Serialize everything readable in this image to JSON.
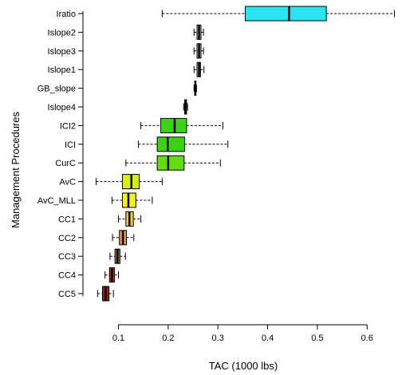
{
  "chart_data": {
    "type": "boxplot",
    "orientation": "horizontal",
    "xlabel": "TAC (1000 lbs)",
    "ylabel": "Management Procedures",
    "xticks": [
      0.1,
      0.2,
      0.3,
      0.4,
      0.5,
      0.6
    ],
    "xlim": [
      0.035,
      0.65
    ],
    "grid": false,
    "series": [
      {
        "label": "Iratio",
        "whisker_low": 0.188,
        "q1": 0.355,
        "median": 0.443,
        "q3": 0.518,
        "whisker_high": 0.655,
        "color": "#28e4ef"
      },
      {
        "label": "Islope2",
        "whisker_low": 0.252,
        "q1": 0.258,
        "median": 0.262,
        "q3": 0.266,
        "whisker_high": 0.271,
        "color": "#c8c8c8"
      },
      {
        "label": "Islope3",
        "whisker_low": 0.252,
        "q1": 0.258,
        "median": 0.262,
        "q3": 0.266,
        "whisker_high": 0.271,
        "color": "#c8c8c8"
      },
      {
        "label": "Islope1",
        "whisker_low": 0.252,
        "q1": 0.258,
        "median": 0.262,
        "q3": 0.265,
        "whisker_high": 0.272,
        "color": "#c8c8c8"
      },
      {
        "label": "GB_slope",
        "whisker_low": 0.252,
        "q1": 0.2535,
        "median": 0.2545,
        "q3": 0.2555,
        "whisker_high": 0.257,
        "color": "#c8c8c8"
      },
      {
        "label": "Islope4",
        "whisker_low": 0.231,
        "q1": 0.233,
        "median": 0.235,
        "q3": 0.237,
        "whisker_high": 0.239,
        "color": "#c8c8c8"
      },
      {
        "label": "ICI2",
        "whisker_low": 0.145,
        "q1": 0.185,
        "median": 0.213,
        "q3": 0.237,
        "whisker_high": 0.31,
        "color": "#3cd216"
      },
      {
        "label": "ICI",
        "whisker_low": 0.14,
        "q1": 0.178,
        "median": 0.199,
        "q3": 0.233,
        "whisker_high": 0.32,
        "color": "#3cd216"
      },
      {
        "label": "CurC",
        "whisker_low": 0.115,
        "q1": 0.178,
        "median": 0.2,
        "q3": 0.232,
        "whisker_high": 0.305,
        "color": "#64dd10"
      },
      {
        "label": "AvC",
        "whisker_low": 0.055,
        "q1": 0.108,
        "median": 0.126,
        "q3": 0.142,
        "whisker_high": 0.188,
        "color": "#d6f010"
      },
      {
        "label": "AvC_MLL",
        "whisker_low": 0.087,
        "q1": 0.108,
        "median": 0.12,
        "q3": 0.135,
        "whisker_high": 0.168,
        "color": "#f0f023"
      },
      {
        "label": "CC1",
        "whisker_low": 0.1,
        "q1": 0.115,
        "median": 0.122,
        "q3": 0.13,
        "whisker_high": 0.145,
        "color": "#f5c73a"
      },
      {
        "label": "CC2",
        "whisker_low": 0.088,
        "q1": 0.102,
        "median": 0.109,
        "q3": 0.116,
        "whisker_high": 0.131,
        "color": "#e89a3c"
      },
      {
        "label": "CC3",
        "whisker_low": 0.083,
        "q1": 0.093,
        "median": 0.098,
        "q3": 0.103,
        "whisker_high": 0.114,
        "color": "#c95e34"
      },
      {
        "label": "CC4",
        "whisker_low": 0.073,
        "q1": 0.082,
        "median": 0.087,
        "q3": 0.092,
        "whisker_high": 0.1,
        "color": "#a0381f"
      },
      {
        "label": "CC5",
        "whisker_low": 0.058,
        "q1": 0.068,
        "median": 0.074,
        "q3": 0.081,
        "whisker_high": 0.09,
        "color": "#9e1a1a"
      }
    ]
  }
}
